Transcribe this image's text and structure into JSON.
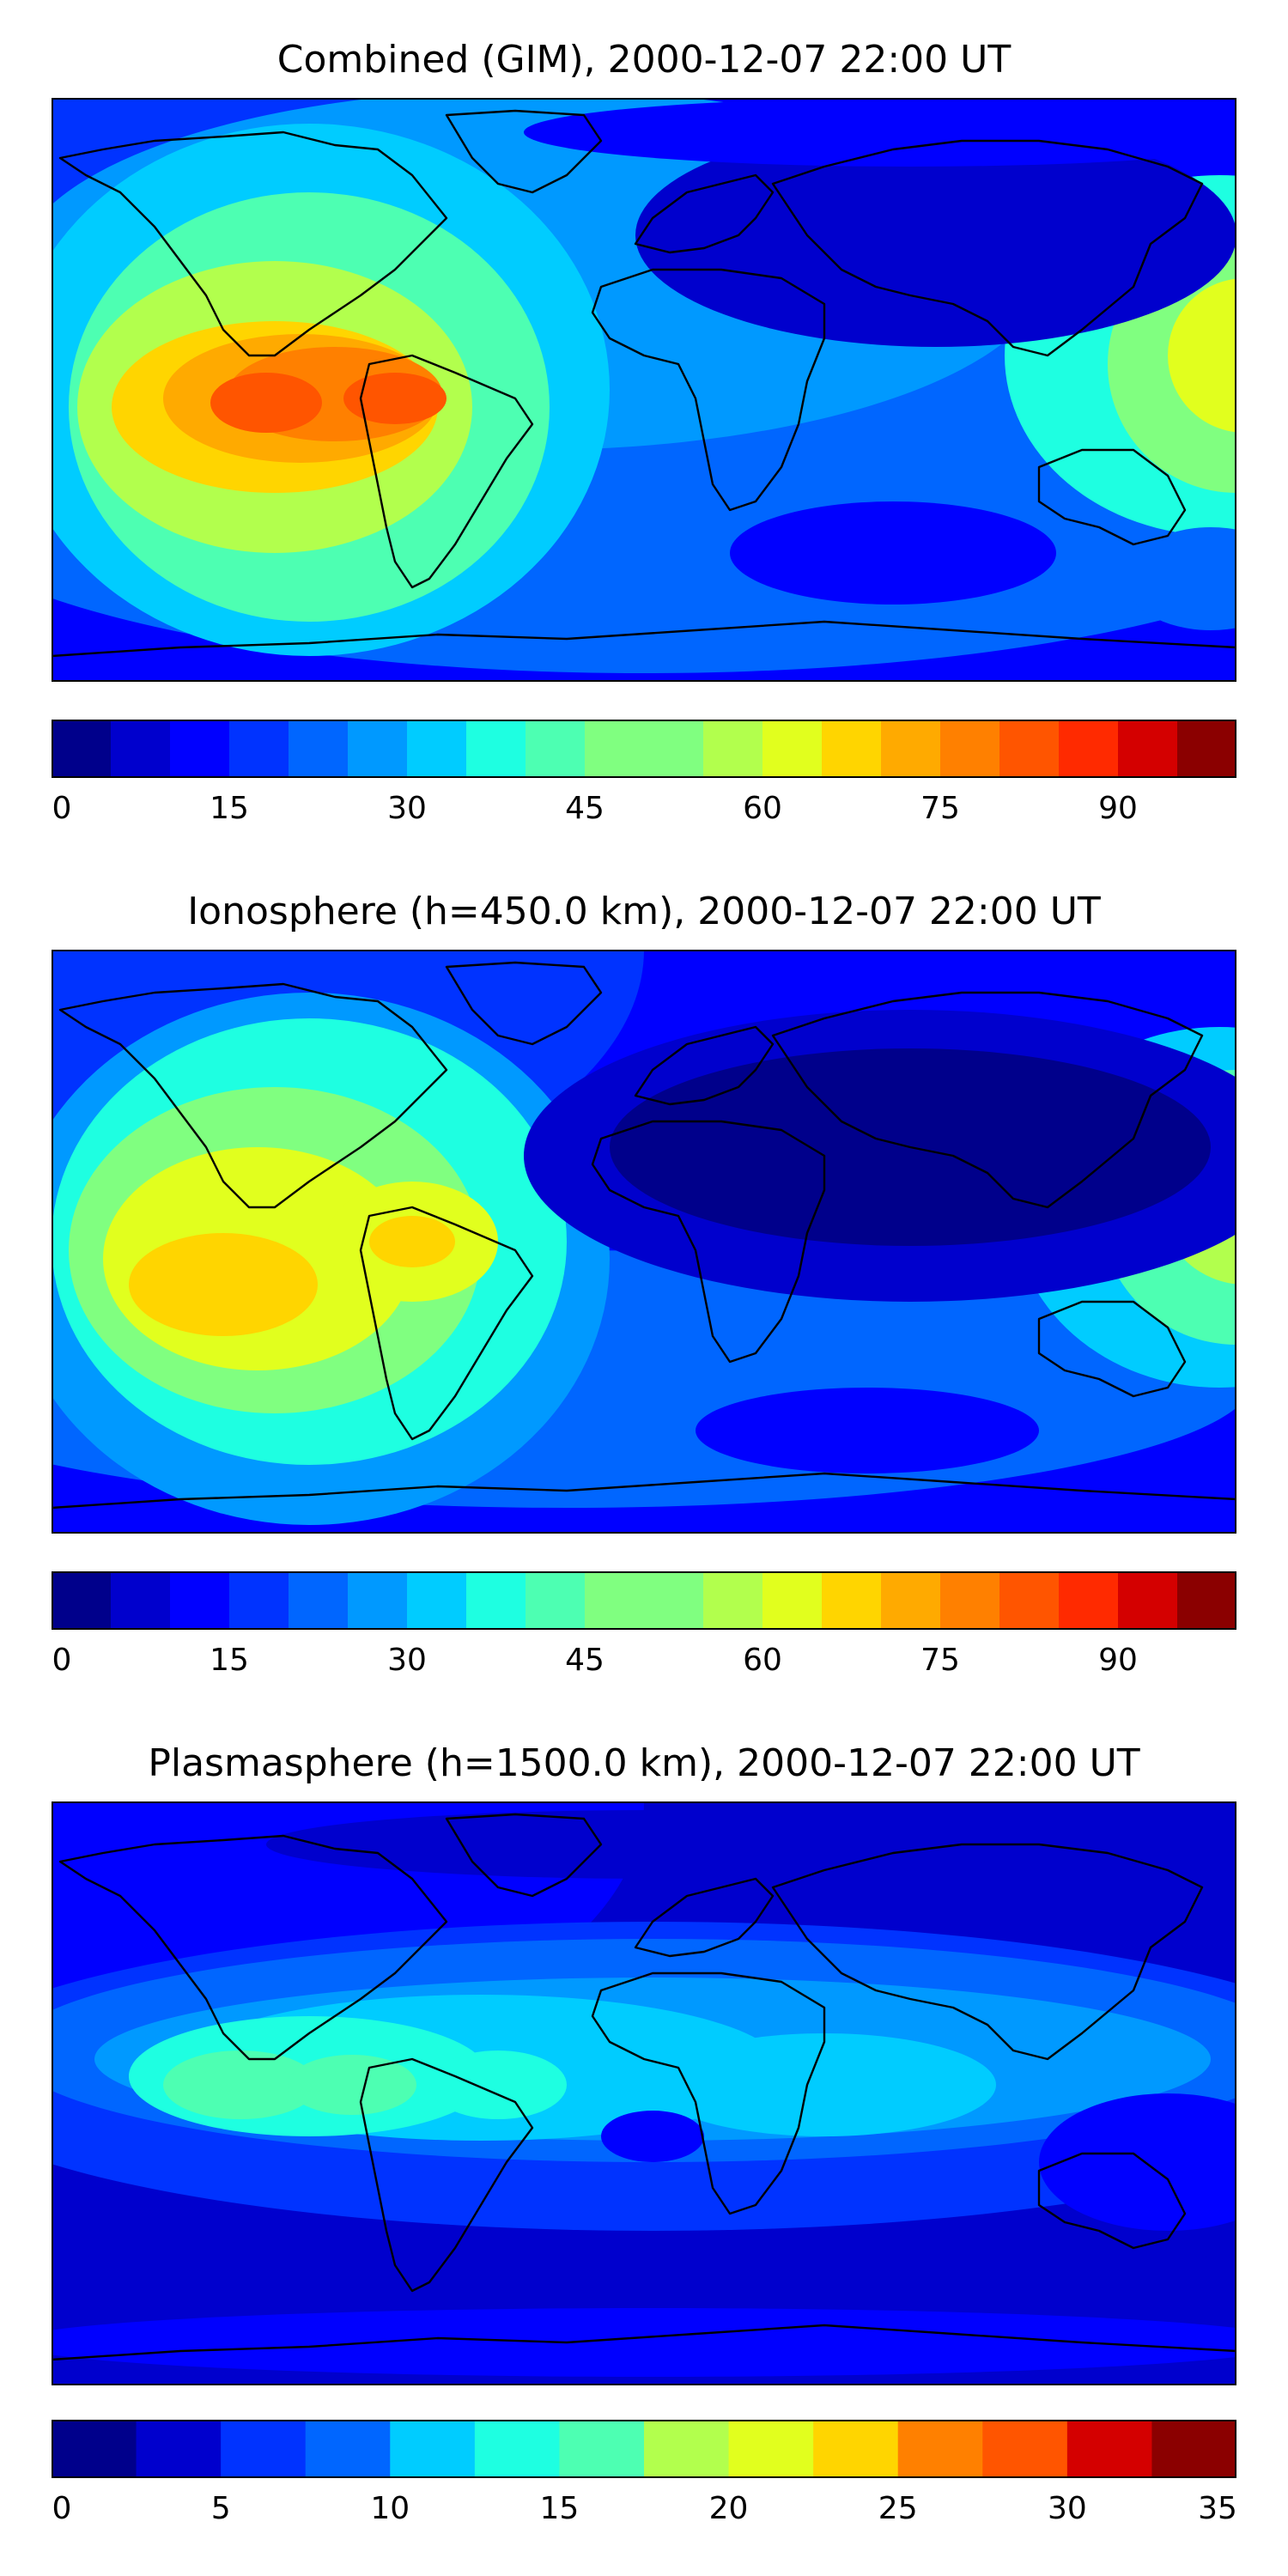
{
  "panels": [
    {
      "title": "Combined (GIM), 2000-12-07 22:00 UT",
      "colorbar": {
        "min": 0,
        "max": 100,
        "step": 5,
        "ticks": [
          "0",
          "15",
          "30",
          "45",
          "60",
          "75",
          "90"
        ]
      }
    },
    {
      "title": "Ionosphere  (h=450.0 km), 2000-12-07 22:00 UT",
      "colorbar": {
        "min": 0,
        "max": 100,
        "step": 5,
        "ticks": [
          "0",
          "15",
          "30",
          "45",
          "60",
          "75",
          "90"
        ]
      }
    },
    {
      "title": "Plasmasphere (h=1500.0 km), 2000-12-07 22:00 UT",
      "colorbar": {
        "min": 0,
        "max": 35,
        "step": 2.5,
        "ticks": [
          "0",
          "5",
          "10",
          "15",
          "20",
          "25",
          "30",
          "35"
        ]
      }
    }
  ],
  "colors": {
    "colormap": [
      "#00008b",
      "#0000cd",
      "#0000ff",
      "#0033ff",
      "#0066ff",
      "#0099ff",
      "#00ccff",
      "#1effe1",
      "#4dffb2",
      "#80ff80",
      "#b2ff4d",
      "#e1ff1e",
      "#ffd500",
      "#ffaa00",
      "#ff8000",
      "#ff5500",
      "#ff2a00",
      "#d40000",
      "#8b0000"
    ],
    "coastline": "#000000"
  }
}
